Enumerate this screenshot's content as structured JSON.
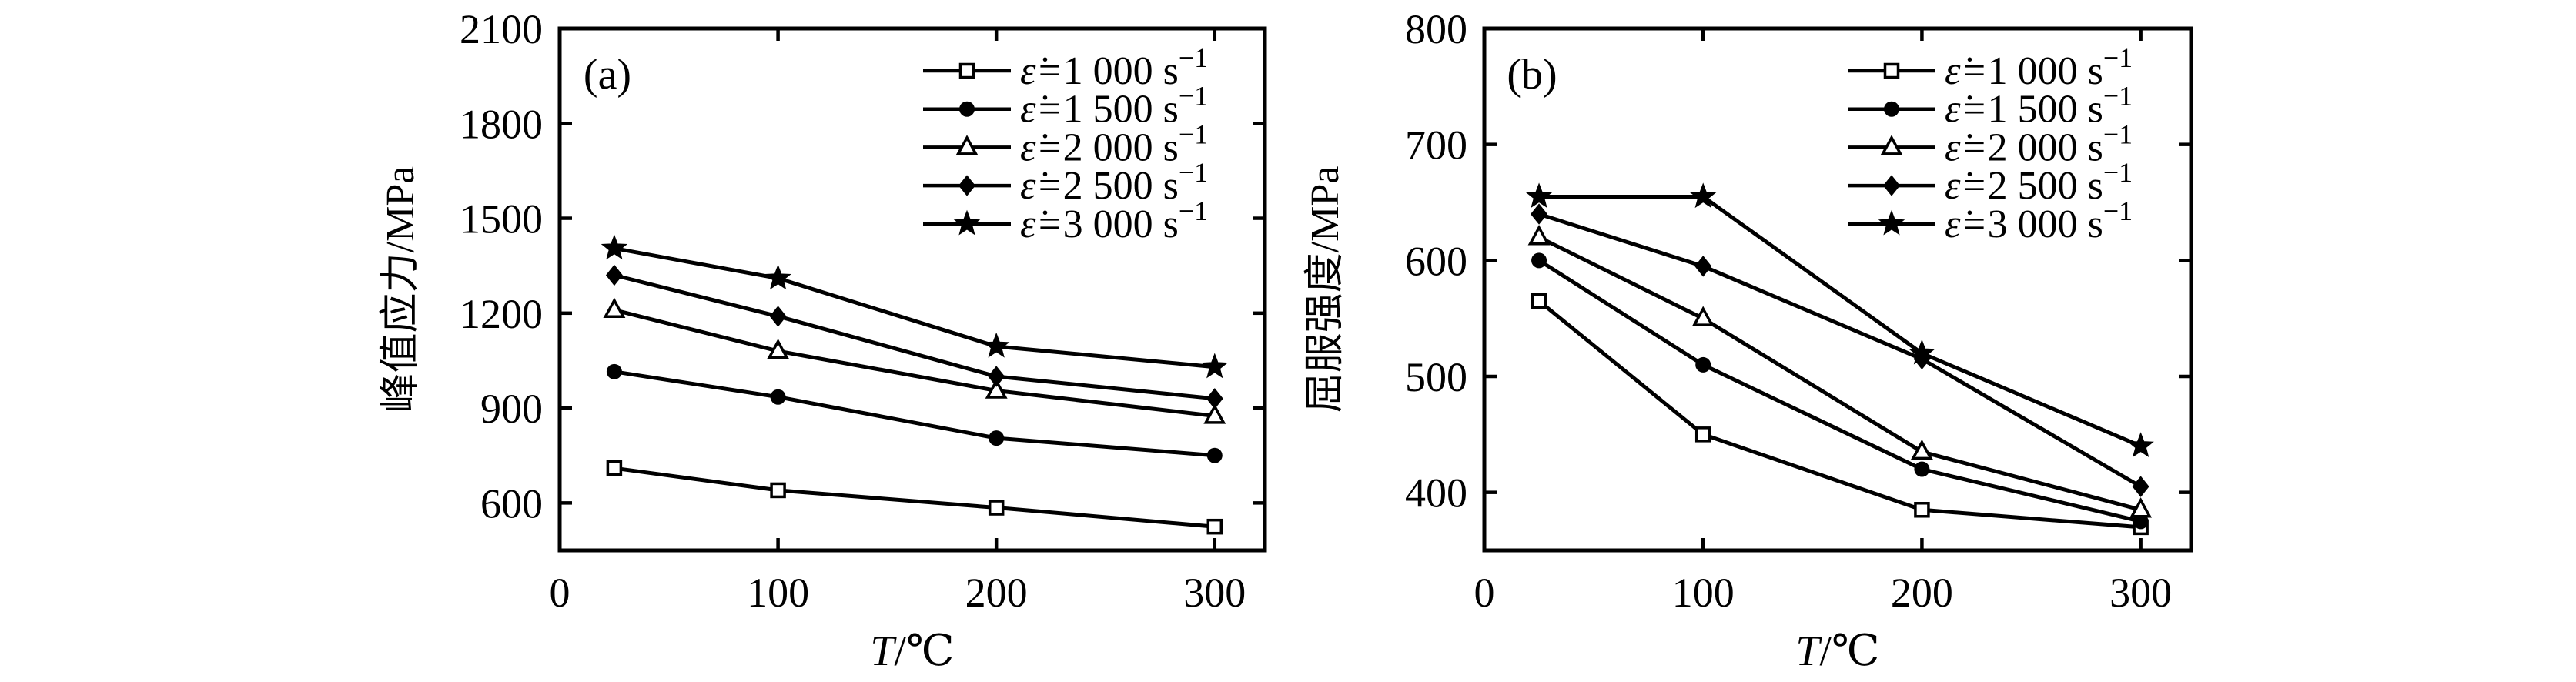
{
  "figure": {
    "background": "#ffffff",
    "ink_color": "#000000",
    "description": "Two-panel line figure: effect of temperature on peak stress (a) and yield strength (b) at five strain rates"
  },
  "legend": {
    "prefix": "ε̇=",
    "unit": "s",
    "superscript": "−1",
    "position": "top-right-inside",
    "entries": [
      {
        "strain_rate": "1 000",
        "marker": "square-open"
      },
      {
        "strain_rate": "1 500",
        "marker": "circle-filled"
      },
      {
        "strain_rate": "2 000",
        "marker": "triangle-open"
      },
      {
        "strain_rate": "2 500",
        "marker": "diamond-filled"
      },
      {
        "strain_rate": "3 000",
        "marker": "star-filled"
      }
    ]
  },
  "chart_data": [
    {
      "type": "line",
      "panel_label": "(a)",
      "title": "",
      "ylabel": "峰值应力/MPa",
      "xlabel_italic_part": "T",
      "xlabel_rest": "/℃",
      "x": [
        25,
        100,
        200,
        300
      ],
      "xticks": [
        0,
        100,
        200,
        300
      ],
      "xlim": [
        0,
        323
      ],
      "ylim": [
        450,
        2100
      ],
      "yticks": [
        600,
        900,
        1200,
        1500,
        1800,
        2100
      ],
      "grid": false,
      "legend_shown": true,
      "series": [
        {
          "key": "1000",
          "name": "ε̇=1 000 s⁻¹",
          "marker": "square-open",
          "values": [
            710,
            640,
            585,
            525
          ]
        },
        {
          "key": "1500",
          "name": "ε̇=1 500 s⁻¹",
          "marker": "circle-filled",
          "values": [
            1015,
            935,
            805,
            750
          ]
        },
        {
          "key": "2000",
          "name": "ε̇=2 000 s⁻¹",
          "marker": "triangle-open",
          "values": [
            1210,
            1080,
            955,
            875
          ]
        },
        {
          "key": "2500",
          "name": "ε̇=2 500 s⁻¹",
          "marker": "diamond-filled",
          "values": [
            1320,
            1190,
            1000,
            930
          ]
        },
        {
          "key": "3000",
          "name": "ε̇=3 000 s⁻¹",
          "marker": "star-filled",
          "values": [
            1405,
            1310,
            1095,
            1030
          ]
        }
      ]
    },
    {
      "type": "line",
      "panel_label": "(b)",
      "title": "",
      "ylabel": "屈服强度/MPa",
      "xlabel_italic_part": "T",
      "xlabel_rest": "/℃",
      "x": [
        25,
        100,
        200,
        300
      ],
      "xticks": [
        0,
        100,
        200,
        300
      ],
      "xlim": [
        0,
        323
      ],
      "ylim": [
        350,
        800
      ],
      "yticks": [
        400,
        500,
        600,
        700,
        800
      ],
      "grid": false,
      "legend_shown": true,
      "series": [
        {
          "key": "1000",
          "name": "ε̇=1 000 s⁻¹",
          "marker": "square-open",
          "values": [
            565,
            450,
            385,
            370
          ]
        },
        {
          "key": "1500",
          "name": "ε̇=1 500 s⁻¹",
          "marker": "circle-filled",
          "values": [
            600,
            510,
            420,
            375
          ]
        },
        {
          "key": "2000",
          "name": "ε̇=2 000 s⁻¹",
          "marker": "triangle-open",
          "values": [
            620,
            550,
            435,
            385
          ]
        },
        {
          "key": "2500",
          "name": "ε̇=2 500 s⁻¹",
          "marker": "diamond-filled",
          "values": [
            640,
            595,
            515,
            405
          ]
        },
        {
          "key": "3000",
          "name": "ε̇=3 000 s⁻¹",
          "marker": "star-filled",
          "values": [
            655,
            655,
            520,
            440
          ]
        }
      ]
    }
  ]
}
